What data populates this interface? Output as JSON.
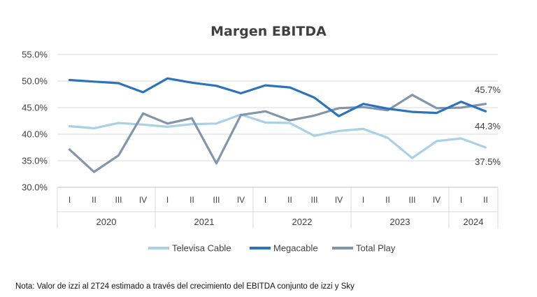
{
  "chart_data": {
    "type": "line",
    "title": "Margen EBITDA",
    "ylim": [
      30,
      55
    ],
    "y_ticks": [
      "30.0%",
      "35.0%",
      "40.0%",
      "45.0%",
      "50.0%",
      "55.0%"
    ],
    "quarters": [
      "I",
      "II",
      "III",
      "IV",
      "I",
      "II",
      "III",
      "IV",
      "I",
      "II",
      "III",
      "IV",
      "I",
      "II",
      "III",
      "IV",
      "I",
      "II"
    ],
    "years": [
      {
        "label": "2020",
        "quarters": 4
      },
      {
        "label": "2021",
        "quarters": 4
      },
      {
        "label": "2022",
        "quarters": 4
      },
      {
        "label": "2023",
        "quarters": 4
      },
      {
        "label": "2024",
        "quarters": 2
      }
    ],
    "series": [
      {
        "name": "Televisa Cable",
        "color": "#a9d1e6",
        "values": [
          41.5,
          41.1,
          42.1,
          41.8,
          41.4,
          41.9,
          42.0,
          43.7,
          42.2,
          42.1,
          39.7,
          40.6,
          41.0,
          39.3,
          35.5,
          38.7,
          39.2,
          37.5
        ]
      },
      {
        "name": "Megacable",
        "color": "#2b74bb",
        "values": [
          50.2,
          49.9,
          49.6,
          47.9,
          50.5,
          49.7,
          49.1,
          47.7,
          49.2,
          48.8,
          46.9,
          43.4,
          45.7,
          44.8,
          44.2,
          44.0,
          46.1,
          44.3
        ]
      },
      {
        "name": "Total Play",
        "color": "#8196ab",
        "values": [
          37.1,
          32.9,
          36.0,
          43.9,
          42.0,
          43.0,
          34.5,
          43.6,
          44.3,
          42.6,
          43.5,
          44.9,
          45.1,
          44.5,
          47.4,
          44.9,
          45.0,
          45.7
        ]
      }
    ],
    "end_labels": [
      "45.7%",
      "44.3%",
      "37.5%"
    ],
    "grid": true,
    "legend": "bottom"
  },
  "note": "Nota: Valor de izzi al 2T24 estimado a través del crecimiento del EBITDA conjunto de izzi y Sky"
}
